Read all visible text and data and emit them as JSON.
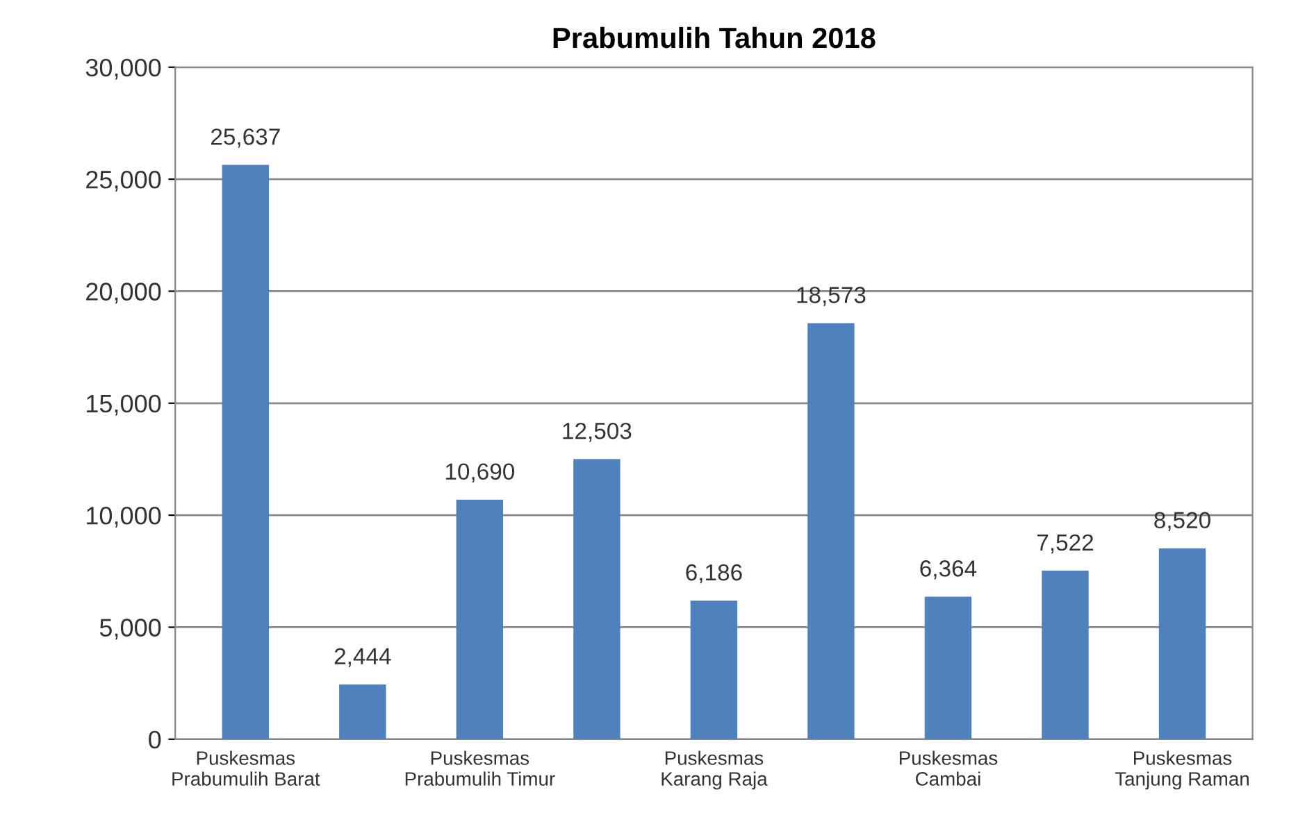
{
  "chart_data": {
    "type": "bar",
    "title": "Prabumulih Tahun 2018",
    "categories": [
      "Puskesmas\nPrabumulih Barat",
      null,
      "Puskesmas\nPrabumulih Timur",
      null,
      "Puskesmas\nKarang Raja",
      null,
      "Puskesmas\nCambai",
      null,
      "Puskesmas\nTanjung Raman"
    ],
    "values": [
      25637,
      2444,
      10690,
      12503,
      6186,
      18573,
      6364,
      7522,
      8520
    ],
    "value_labels": [
      "25,637",
      "2,444",
      "10,690",
      "12,503",
      "6,186",
      "18,573",
      "6,364",
      "7,522",
      "8,520"
    ],
    "color": "#4f81bd",
    "ylim": [
      0,
      30000
    ],
    "yticks": [
      {
        "value": 0,
        "label": "0"
      },
      {
        "value": 5000,
        "label": "5,000"
      },
      {
        "value": 10000,
        "label": "10,000"
      },
      {
        "value": 15000,
        "label": "15,000"
      },
      {
        "value": 20000,
        "label": "20,000"
      },
      {
        "value": 25000,
        "label": "25,000"
      },
      {
        "value": 30000,
        "label": "30,000"
      }
    ],
    "grid": "y"
  }
}
